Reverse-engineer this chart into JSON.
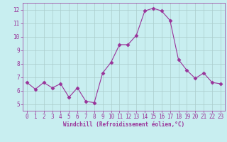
{
  "x": [
    0,
    1,
    2,
    3,
    4,
    5,
    6,
    7,
    8,
    9,
    10,
    11,
    12,
    13,
    14,
    15,
    16,
    17,
    18,
    19,
    20,
    21,
    22,
    23
  ],
  "y": [
    6.6,
    6.1,
    6.6,
    6.2,
    6.5,
    5.5,
    6.2,
    5.2,
    5.1,
    7.3,
    8.1,
    9.4,
    9.4,
    10.1,
    11.9,
    12.1,
    11.9,
    11.2,
    8.3,
    7.5,
    6.9,
    7.3,
    6.6,
    6.5
  ],
  "line_color": "#993399",
  "marker": "D",
  "marker_size": 2.5,
  "bg_color": "#c8eef0",
  "grid_color": "#aacccc",
  "xlabel": "Windchill (Refroidissement éolien,°C)",
  "xlabel_color": "#993399",
  "tick_color": "#993399",
  "label_color": "#993399",
  "ylim": [
    4.5,
    12.5
  ],
  "xlim": [
    -0.5,
    23.5
  ],
  "yticks": [
    5,
    6,
    7,
    8,
    9,
    10,
    11,
    12
  ],
  "xticks": [
    0,
    1,
    2,
    3,
    4,
    5,
    6,
    7,
    8,
    9,
    10,
    11,
    12,
    13,
    14,
    15,
    16,
    17,
    18,
    19,
    20,
    21,
    22,
    23
  ]
}
